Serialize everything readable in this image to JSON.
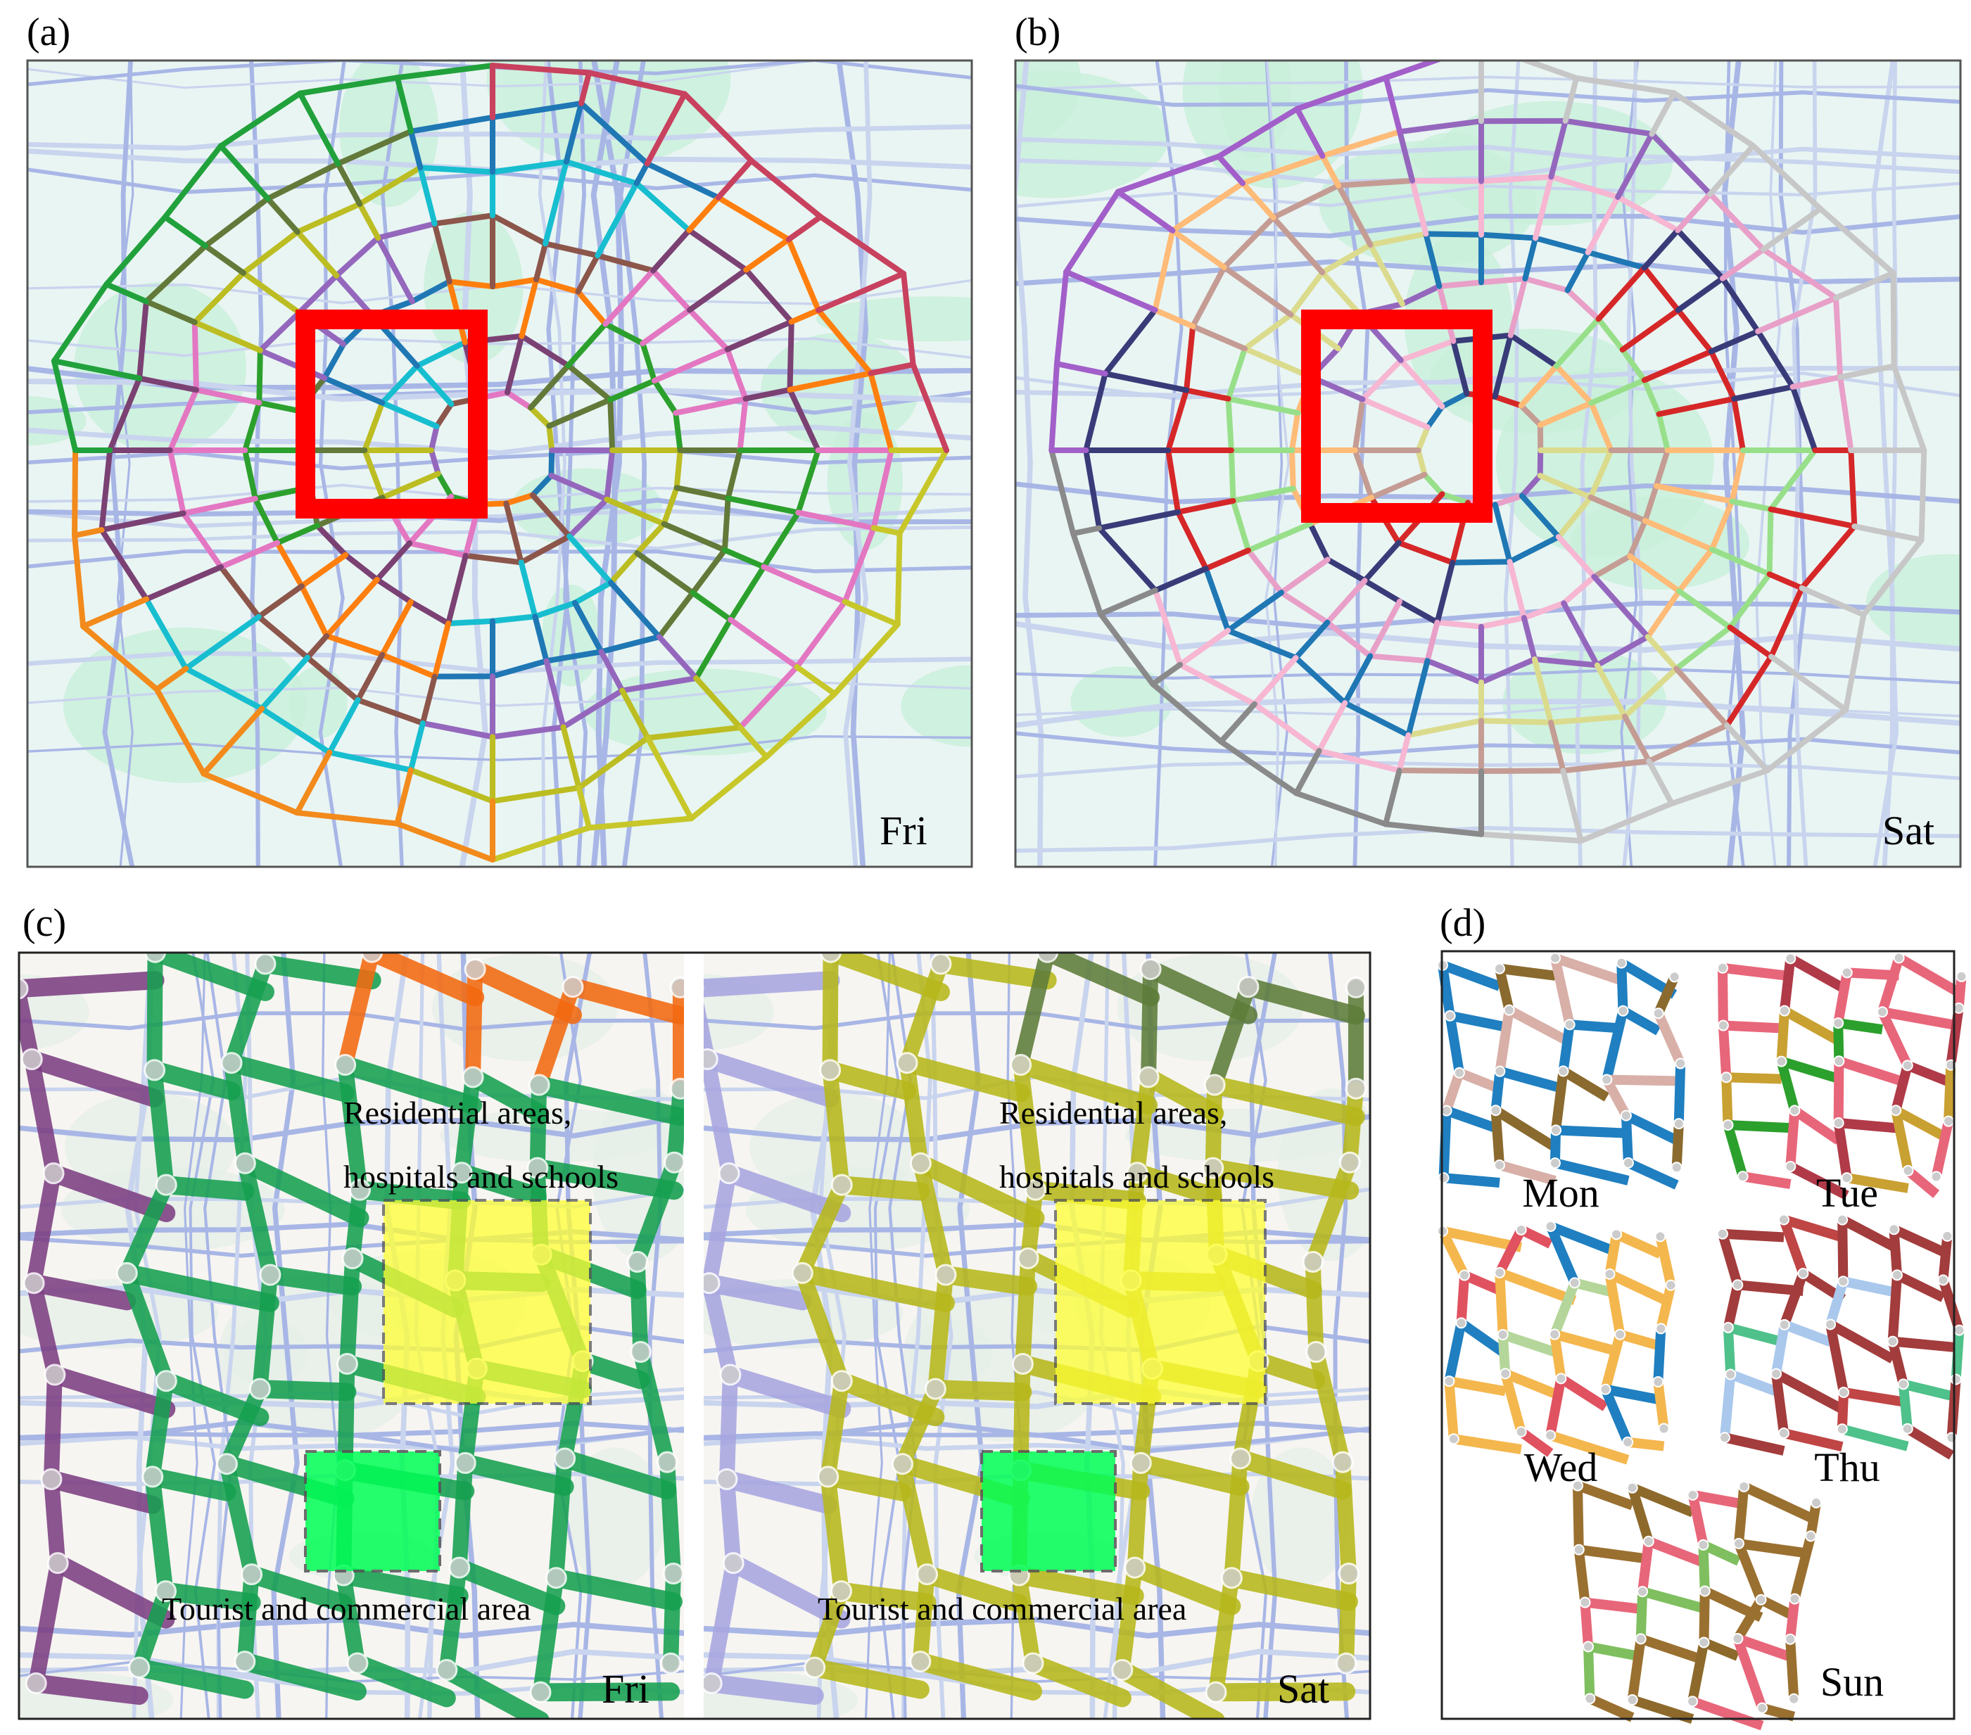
{
  "panels": {
    "a": {
      "label": "(a)",
      "day": "Fri"
    },
    "b": {
      "label": "(b)",
      "day": "Sat"
    },
    "c": {
      "label": "(c)",
      "maps": [
        {
          "day": "Fri"
        },
        {
          "day": "Sat"
        }
      ],
      "annotations": {
        "residential_line1": "Residential areas,",
        "residential_line2": "hospitals and schools",
        "tourist": "Tourist and commercial area"
      }
    },
    "d": {
      "label": "(d)",
      "days": [
        "Mon",
        "Tue",
        "Wed",
        "Thu",
        "Sun"
      ]
    }
  }
}
